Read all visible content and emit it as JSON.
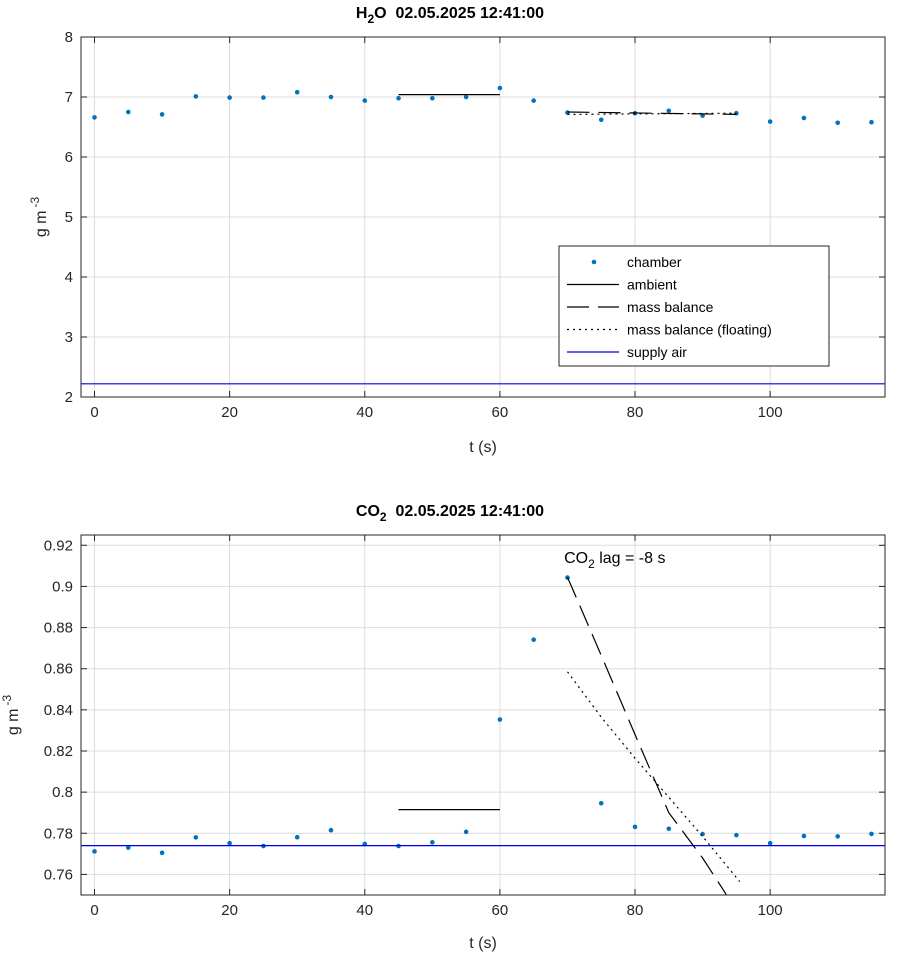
{
  "chart_data": [
    {
      "type": "scatter",
      "title": "H",
      "title_sub": "2",
      "title_rest": "O  02.05.2025 12:41:00",
      "xlabel": "t (s)",
      "ylabel": "g m",
      "ylabel_sup": "-3",
      "xlim": [
        -2,
        117
      ],
      "ylim": [
        2,
        8
      ],
      "xticks": [
        0,
        20,
        40,
        60,
        80,
        100
      ],
      "yticks": [
        2,
        3,
        4,
        5,
        6,
        7,
        8
      ],
      "grid": true,
      "legend_position": "lower-right",
      "series": [
        {
          "name": "chamber",
          "style": "markers",
          "color": "#0072BD",
          "x": [
            0,
            5,
            10,
            15,
            20,
            25,
            30,
            35,
            40,
            45,
            50,
            55,
            60,
            65,
            70,
            75,
            80,
            85,
            90,
            95,
            100,
            105,
            110,
            115
          ],
          "y": [
            6.66,
            6.75,
            6.71,
            7.01,
            6.99,
            6.99,
            7.08,
            7.0,
            6.94,
            6.98,
            6.98,
            7.0,
            7.15,
            6.94,
            6.74,
            6.62,
            6.73,
            6.77,
            6.69,
            6.73,
            6.59,
            6.65,
            6.57,
            6.58
          ]
        },
        {
          "name": "ambient",
          "style": "solid",
          "color": "#000000",
          "x": [
            45,
            60
          ],
          "y": [
            7.04,
            7.04
          ]
        },
        {
          "name": "mass balance",
          "style": "dashed",
          "color": "#000000",
          "x": [
            70,
            95
          ],
          "y": [
            6.75,
            6.71
          ]
        },
        {
          "name": "mass balance (floating)",
          "style": "dotted",
          "color": "#000000",
          "x": [
            70,
            95
          ],
          "y": [
            6.71,
            6.73
          ]
        },
        {
          "name": "supply air",
          "style": "solid",
          "color": "#0000E6",
          "x": [
            -2,
            117
          ],
          "y": [
            2.22,
            2.22
          ]
        }
      ]
    },
    {
      "type": "scatter",
      "title": "CO",
      "title_sub": "2",
      "title_rest": "  02.05.2025 12:41:00",
      "xlabel": "t (s)",
      "ylabel": "g m",
      "ylabel_sup": "-3",
      "xlim": [
        -2,
        117
      ],
      "ylim": [
        0.75,
        0.925
      ],
      "xticks": [
        0,
        20,
        40,
        60,
        80,
        100
      ],
      "yticks": [
        0.76,
        0.78,
        0.8,
        0.82,
        0.84,
        0.86,
        0.88,
        0.9,
        0.92
      ],
      "grid": true,
      "annotation": {
        "pre": "CO",
        "sub": "2",
        "post": " lag = -8 s",
        "x": 69.5,
        "y": 0.9115
      },
      "series": [
        {
          "name": "chamber",
          "style": "markers",
          "color": "#0072BD",
          "x": [
            0,
            5,
            10,
            15,
            20,
            25,
            30,
            35,
            40,
            45,
            50,
            55,
            60,
            65,
            70,
            75,
            80,
            85,
            90,
            95,
            100,
            105,
            110,
            115
          ],
          "y": [
            0.7712,
            0.773,
            0.7705,
            0.778,
            0.7752,
            0.7738,
            0.7781,
            0.7815,
            0.7748,
            0.7738,
            0.7756,
            0.7807,
            0.8353,
            0.8741,
            0.9043,
            0.7946,
            0.7831,
            0.7822,
            0.7796,
            0.7791,
            0.7752,
            0.7787,
            0.7785,
            0.7797
          ]
        },
        {
          "name": "ambient",
          "style": "solid",
          "color": "#000000",
          "x": [
            45,
            60
          ],
          "y": [
            0.7915,
            0.7915
          ]
        },
        {
          "name": "mass balance",
          "style": "dashed",
          "color": "#000000",
          "x": [
            70,
            75,
            80,
            85,
            90,
            93.5
          ],
          "y": [
            0.9045,
            0.8665,
            0.828,
            0.79,
            0.768,
            0.7503
          ]
        },
        {
          "name": "mass balance (floating)",
          "style": "dotted",
          "color": "#000000",
          "x": [
            70,
            75,
            80,
            85,
            90,
            95.5
          ],
          "y": [
            0.8585,
            0.8365,
            0.8165,
            0.7975,
            0.7785,
            0.7565
          ]
        },
        {
          "name": "supply air",
          "style": "solid",
          "color": "#0000E6",
          "x": [
            -2,
            117
          ],
          "y": [
            0.774,
            0.774
          ]
        }
      ]
    }
  ]
}
